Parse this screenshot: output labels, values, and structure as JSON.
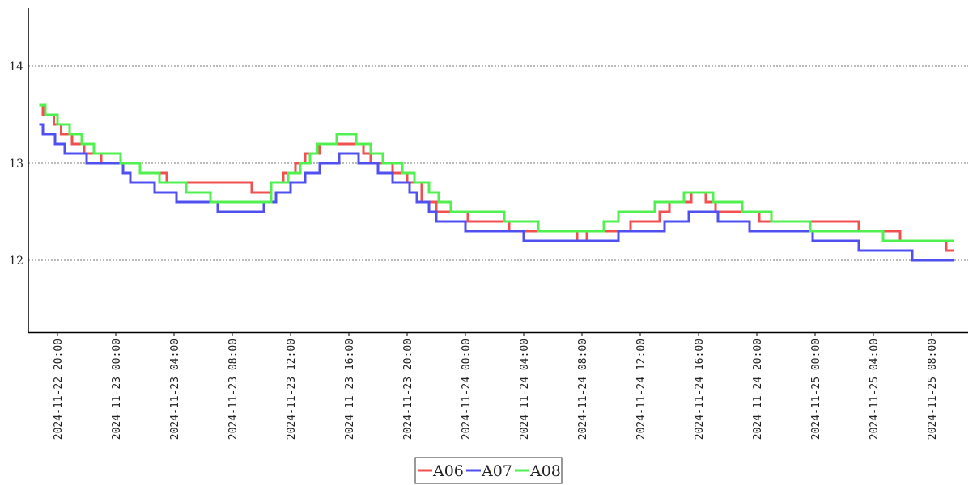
{
  "chart_data": {
    "type": "line",
    "step": true,
    "title": "",
    "xlabel": "",
    "ylabel": "",
    "x_tick_labels": [
      "2024-11-22 20:00",
      "2024-11-23 00:00",
      "2024-11-23 04:00",
      "2024-11-23 08:00",
      "2024-11-23 12:00",
      "2024-11-23 16:00",
      "2024-11-23 20:00",
      "2024-11-24 00:00",
      "2024-11-24 04:00",
      "2024-11-24 08:00",
      "2024-11-24 12:00",
      "2024-11-24 16:00",
      "2024-11-24 20:00",
      "2024-11-25 00:00",
      "2024-11-25 04:00",
      "2024-11-25 08:00"
    ],
    "y_ticks": [
      12,
      13,
      14
    ],
    "ylim": [
      11.25,
      14.6
    ],
    "xlim": [
      "2024-11-22 18:00",
      "2024-11-25 10:30"
    ],
    "grid": "horizontal dotted",
    "legend_position": "bottom-center",
    "series": [
      {
        "name": "A06",
        "color": "#f05050",
        "points": [
          [
            "2024-11-22 18:45",
            13.6
          ],
          [
            "2024-11-22 19:00",
            13.5
          ],
          [
            "2024-11-22 19:45",
            13.4
          ],
          [
            "2024-11-22 20:15",
            13.3
          ],
          [
            "2024-11-22 21:00",
            13.2
          ],
          [
            "2024-11-22 21:50",
            13.1
          ],
          [
            "2024-11-22 23:00",
            13.0
          ],
          [
            "2024-11-23 01:40",
            12.9
          ],
          [
            "2024-11-23 03:30",
            12.8
          ],
          [
            "2024-11-23 09:20",
            12.7
          ],
          [
            "2024-11-23 10:40",
            12.8
          ],
          [
            "2024-11-23 11:30",
            12.9
          ],
          [
            "2024-11-23 12:20",
            13.0
          ],
          [
            "2024-11-23 13:00",
            13.1
          ],
          [
            "2024-11-23 14:00",
            13.2
          ],
          [
            "2024-11-23 17:00",
            13.1
          ],
          [
            "2024-11-23 17:30",
            13.0
          ],
          [
            "2024-11-23 19:00",
            12.9
          ],
          [
            "2024-11-23 20:00",
            12.8
          ],
          [
            "2024-11-23 21:00",
            12.6
          ],
          [
            "2024-11-23 22:00",
            12.5
          ],
          [
            "2024-11-24 00:10",
            12.4
          ],
          [
            "2024-11-24 03:00",
            12.3
          ],
          [
            "2024-11-24 07:40",
            12.2
          ],
          [
            "2024-11-24 08:20",
            12.3
          ],
          [
            "2024-11-24 11:20",
            12.4
          ],
          [
            "2024-11-24 13:20",
            12.5
          ],
          [
            "2024-11-24 14:00",
            12.6
          ],
          [
            "2024-11-24 15:30",
            12.7
          ],
          [
            "2024-11-24 16:30",
            12.6
          ],
          [
            "2024-11-24 17:10",
            12.5
          ],
          [
            "2024-11-24 20:10",
            12.4
          ],
          [
            "2024-11-25 00:40",
            12.4
          ],
          [
            "2024-11-25 03:00",
            12.3
          ],
          [
            "2024-11-25 05:50",
            12.2
          ],
          [
            "2024-11-25 09:00",
            12.1
          ],
          [
            "2024-11-25 09:30",
            12.1
          ]
        ]
      },
      {
        "name": "A07",
        "color": "#5050f0",
        "points": [
          [
            "2024-11-22 18:45",
            13.4
          ],
          [
            "2024-11-22 19:00",
            13.3
          ],
          [
            "2024-11-22 19:50",
            13.2
          ],
          [
            "2024-11-22 20:30",
            13.1
          ],
          [
            "2024-11-22 22:00",
            13.0
          ],
          [
            "2024-11-23 00:30",
            12.9
          ],
          [
            "2024-11-23 01:00",
            12.8
          ],
          [
            "2024-11-23 02:40",
            12.7
          ],
          [
            "2024-11-23 04:10",
            12.6
          ],
          [
            "2024-11-23 07:00",
            12.5
          ],
          [
            "2024-11-23 10:10",
            12.6
          ],
          [
            "2024-11-23 11:00",
            12.7
          ],
          [
            "2024-11-23 12:00",
            12.8
          ],
          [
            "2024-11-23 13:00",
            12.9
          ],
          [
            "2024-11-23 14:00",
            13.0
          ],
          [
            "2024-11-23 15:20",
            13.1
          ],
          [
            "2024-11-23 16:40",
            13.0
          ],
          [
            "2024-11-23 18:00",
            12.9
          ],
          [
            "2024-11-23 19:00",
            12.8
          ],
          [
            "2024-11-23 20:10",
            12.7
          ],
          [
            "2024-11-23 20:40",
            12.6
          ],
          [
            "2024-11-23 21:30",
            12.5
          ],
          [
            "2024-11-23 22:00",
            12.4
          ],
          [
            "2024-11-24 00:00",
            12.3
          ],
          [
            "2024-11-24 04:00",
            12.2
          ],
          [
            "2024-11-24 10:30",
            12.3
          ],
          [
            "2024-11-24 13:40",
            12.4
          ],
          [
            "2024-11-24 15:20",
            12.5
          ],
          [
            "2024-11-24 17:20",
            12.4
          ],
          [
            "2024-11-24 19:30",
            12.3
          ],
          [
            "2024-11-24 23:50",
            12.2
          ],
          [
            "2024-11-25 03:00",
            12.1
          ],
          [
            "2024-11-25 06:40",
            12.0
          ],
          [
            "2024-11-25 09:30",
            12.0
          ]
        ]
      },
      {
        "name": "A08",
        "color": "#50f050",
        "points": [
          [
            "2024-11-22 18:45",
            13.6
          ],
          [
            "2024-11-22 19:10",
            13.5
          ],
          [
            "2024-11-22 20:00",
            13.4
          ],
          [
            "2024-11-22 20:50",
            13.3
          ],
          [
            "2024-11-22 21:40",
            13.2
          ],
          [
            "2024-11-22 22:30",
            13.1
          ],
          [
            "2024-11-23 00:20",
            13.0
          ],
          [
            "2024-11-23 01:40",
            12.9
          ],
          [
            "2024-11-23 03:00",
            12.8
          ],
          [
            "2024-11-23 04:50",
            12.7
          ],
          [
            "2024-11-23 06:30",
            12.6
          ],
          [
            "2024-11-23 10:40",
            12.8
          ],
          [
            "2024-11-23 11:50",
            12.9
          ],
          [
            "2024-11-23 12:40",
            13.0
          ],
          [
            "2024-11-23 13:20",
            13.1
          ],
          [
            "2024-11-23 13:50",
            13.2
          ],
          [
            "2024-11-23 15:10",
            13.3
          ],
          [
            "2024-11-23 16:30",
            13.2
          ],
          [
            "2024-11-23 17:30",
            13.1
          ],
          [
            "2024-11-23 18:20",
            13.0
          ],
          [
            "2024-11-23 19:40",
            12.9
          ],
          [
            "2024-11-23 20:30",
            12.8
          ],
          [
            "2024-11-23 21:30",
            12.7
          ],
          [
            "2024-11-23 22:10",
            12.6
          ],
          [
            "2024-11-23 23:00",
            12.5
          ],
          [
            "2024-11-24 01:20",
            12.5
          ],
          [
            "2024-11-24 02:40",
            12.4
          ],
          [
            "2024-11-24 05:00",
            12.3
          ],
          [
            "2024-11-24 09:30",
            12.4
          ],
          [
            "2024-11-24 10:30",
            12.5
          ],
          [
            "2024-11-24 13:00",
            12.6
          ],
          [
            "2024-11-24 15:00",
            12.7
          ],
          [
            "2024-11-24 17:00",
            12.6
          ],
          [
            "2024-11-24 19:00",
            12.5
          ],
          [
            "2024-11-24 21:00",
            12.4
          ],
          [
            "2024-11-24 23:40",
            12.3
          ],
          [
            "2024-11-25 02:20",
            12.3
          ],
          [
            "2024-11-25 04:40",
            12.2
          ],
          [
            "2024-11-25 09:30",
            12.2
          ]
        ]
      }
    ]
  }
}
